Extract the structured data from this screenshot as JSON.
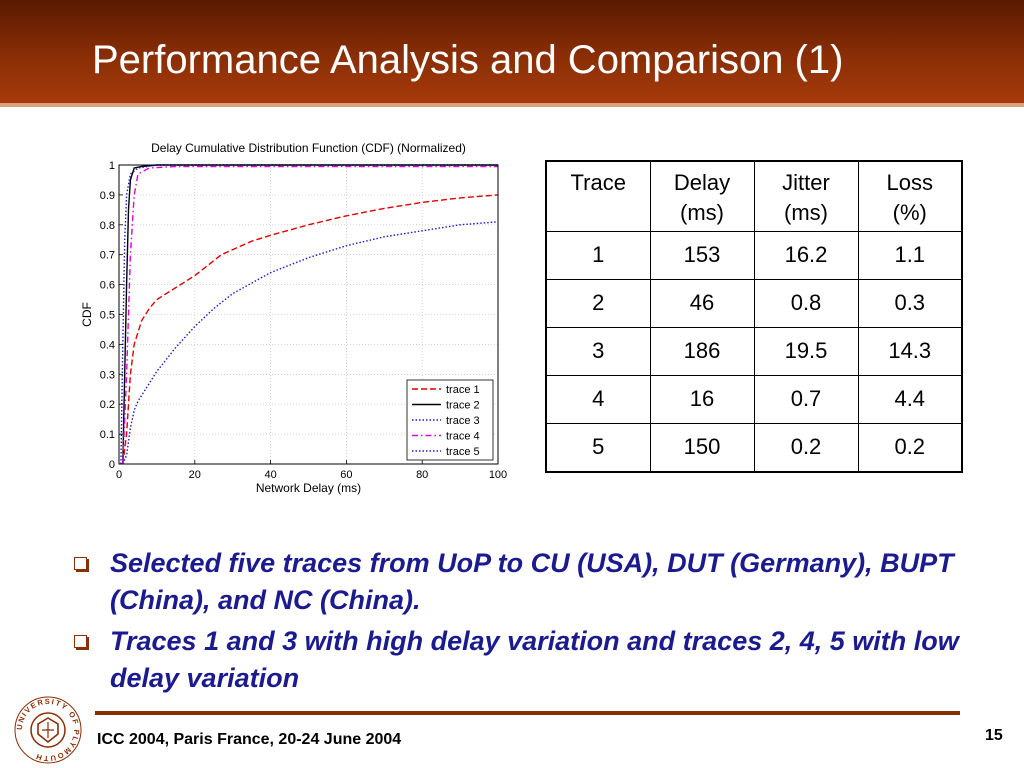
{
  "slide": {
    "title": "Performance Analysis and Comparison (1)",
    "footer": "ICC 2004, Paris France, 20-24 June 2004",
    "page_number": "15",
    "logo_text": "UNIVERSITY OF PLYMOUTH",
    "bullets": [
      "Selected five traces from UoP to CU (USA), DUT (Germany), BUPT (China), and NC (China).",
      "Traces 1 and 3 with high delay variation and traces 2, 4, 5 with low delay variation"
    ],
    "colors": {
      "header_dark": "#5a1a02",
      "header_light": "#a63a0a",
      "accent": "#8a2e06",
      "bullet_text": "#1b1b8f"
    }
  },
  "chart_data": {
    "type": "line",
    "title": "Delay Cumulative Distribution Function (CDF) (Normalized)",
    "xlabel": "Network Delay (ms)",
    "ylabel": "CDF",
    "xlim": [
      0,
      100
    ],
    "ylim": [
      0,
      1
    ],
    "xticks": [
      0,
      20,
      40,
      60,
      80,
      100
    ],
    "yticks": [
      0,
      0.1,
      0.2,
      0.3,
      0.4,
      0.5,
      0.6,
      0.7,
      0.8,
      0.9,
      1
    ],
    "grid": true,
    "legend_position": "bottom-right",
    "series": [
      {
        "name": "trace 1",
        "color": "#e00000",
        "dash": "dashed",
        "points": [
          [
            1,
            0
          ],
          [
            2,
            0.1
          ],
          [
            3,
            0.3
          ],
          [
            4,
            0.4
          ],
          [
            6,
            0.48
          ],
          [
            8,
            0.52
          ],
          [
            10,
            0.55
          ],
          [
            15,
            0.59
          ],
          [
            20,
            0.63
          ],
          [
            25,
            0.68
          ],
          [
            27,
            0.7
          ],
          [
            35,
            0.745
          ],
          [
            40,
            0.765
          ],
          [
            50,
            0.8
          ],
          [
            60,
            0.83
          ],
          [
            70,
            0.855
          ],
          [
            80,
            0.875
          ],
          [
            90,
            0.89
          ],
          [
            100,
            0.9
          ]
        ]
      },
      {
        "name": "trace 2",
        "color": "#000000",
        "dash": "solid",
        "points": [
          [
            1,
            0
          ],
          [
            1.5,
            0.3
          ],
          [
            2,
            0.6
          ],
          [
            2.5,
            0.85
          ],
          [
            3,
            0.95
          ],
          [
            4,
            0.99
          ],
          [
            6,
            0.995
          ],
          [
            10,
            1
          ],
          [
            100,
            1
          ]
        ]
      },
      {
        "name": "trace 3",
        "color": "#1a1ad0",
        "dash": "dotted",
        "points": [
          [
            1,
            0
          ],
          [
            2,
            0.03
          ],
          [
            3,
            0.12
          ],
          [
            4,
            0.18
          ],
          [
            5,
            0.21
          ],
          [
            8,
            0.27
          ],
          [
            10,
            0.31
          ],
          [
            15,
            0.39
          ],
          [
            20,
            0.46
          ],
          [
            25,
            0.52
          ],
          [
            30,
            0.57
          ],
          [
            40,
            0.64
          ],
          [
            50,
            0.69
          ],
          [
            60,
            0.73
          ],
          [
            70,
            0.76
          ],
          [
            80,
            0.78
          ],
          [
            90,
            0.8
          ],
          [
            100,
            0.81
          ]
        ]
      },
      {
        "name": "trace 4",
        "color": "#dd00dd",
        "dash": "dashdot",
        "points": [
          [
            1,
            0
          ],
          [
            2,
            0.3
          ],
          [
            3,
            0.7
          ],
          [
            4,
            0.9
          ],
          [
            5,
            0.97
          ],
          [
            8,
            0.99
          ],
          [
            15,
            0.995
          ],
          [
            100,
            0.995
          ]
        ]
      },
      {
        "name": "trace 5",
        "color": "#1a1ad0",
        "dash": "dotted",
        "points": [
          [
            0.5,
            0
          ],
          [
            1,
            0.4
          ],
          [
            1.5,
            0.75
          ],
          [
            2,
            0.9
          ],
          [
            3,
            0.97
          ],
          [
            5,
            0.99
          ],
          [
            10,
            1
          ],
          [
            100,
            1
          ]
        ]
      }
    ]
  },
  "table": {
    "headers": [
      "Trace",
      "Delay (ms)",
      "Jitter (ms)",
      "Loss (%)"
    ],
    "header_lines": [
      [
        "Trace"
      ],
      [
        "Delay",
        "(ms)"
      ],
      [
        "Jitter",
        "(ms)"
      ],
      [
        "Loss",
        "(%)"
      ]
    ],
    "rows": [
      [
        "1",
        "153",
        "16.2",
        "1.1"
      ],
      [
        "2",
        "46",
        "0.8",
        "0.3"
      ],
      [
        "3",
        "186",
        "19.5",
        "14.3"
      ],
      [
        "4",
        "16",
        "0.7",
        "4.4"
      ],
      [
        "5",
        "150",
        "0.2",
        "0.2"
      ]
    ]
  }
}
